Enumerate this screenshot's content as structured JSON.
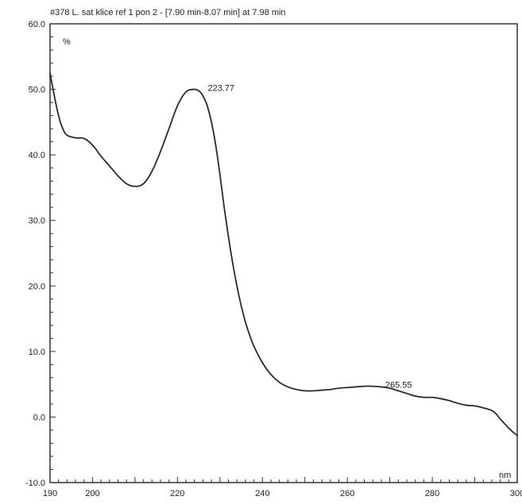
{
  "chart_data": {
    "type": "line",
    "title": "#378 L. sat klice ref 1 pon 2 - [7.90 min-8.07 min] at 7.98 min",
    "xlabel": "nm",
    "ylabel": "%",
    "xlim": [
      190,
      300
    ],
    "ylim": [
      -10,
      60
    ],
    "x_ticks": [
      "190",
      "200",
      "220",
      "240",
      "260",
      "280",
      "300"
    ],
    "y_ticks": [
      "60.0",
      "50.0",
      "40.0",
      "30.0",
      "20.0",
      "10.0",
      "0.0",
      "-10.0"
    ],
    "annotations": [
      {
        "text": "223.77",
        "x": 223.77,
        "y": 50.0
      },
      {
        "text": "265.55",
        "x": 265.55,
        "y": 4.7
      }
    ],
    "series": [
      {
        "color": "#2a2a2a",
        "x": [
          190,
          191,
          192,
          193,
          194,
          196,
          198,
          200,
          202,
          204,
          206,
          208,
          210,
          212,
          214,
          216,
          218,
          220,
          222,
          223.77,
          225,
          226,
          227,
          228,
          229,
          230,
          231,
          232,
          233,
          234,
          235,
          236,
          237,
          238,
          240,
          242,
          244,
          246,
          248,
          250,
          252,
          254,
          256,
          258,
          260,
          262,
          264,
          265.55,
          268,
          270,
          272,
          274,
          276,
          278,
          280,
          282,
          284,
          286,
          288,
          290,
          292,
          294,
          295,
          296,
          297,
          298,
          299,
          300
        ],
        "y": [
          52.5,
          49.0,
          46.0,
          44.0,
          43.0,
          42.6,
          42.5,
          41.5,
          39.8,
          38.3,
          36.8,
          35.6,
          35.2,
          35.6,
          37.5,
          40.5,
          44.0,
          47.5,
          49.6,
          50.0,
          49.8,
          49.0,
          47.5,
          45.0,
          41.5,
          37.0,
          32.0,
          27.5,
          23.5,
          20.0,
          17.0,
          14.5,
          12.5,
          10.8,
          8.3,
          6.5,
          5.3,
          4.6,
          4.2,
          4.0,
          4.0,
          4.1,
          4.2,
          4.4,
          4.5,
          4.6,
          4.7,
          4.7,
          4.6,
          4.4,
          4.0,
          3.6,
          3.2,
          3.0,
          3.0,
          2.8,
          2.5,
          2.1,
          1.8,
          1.7,
          1.4,
          1.0,
          0.5,
          -0.3,
          -1.0,
          -1.7,
          -2.3,
          -2.8
        ]
      }
    ]
  }
}
